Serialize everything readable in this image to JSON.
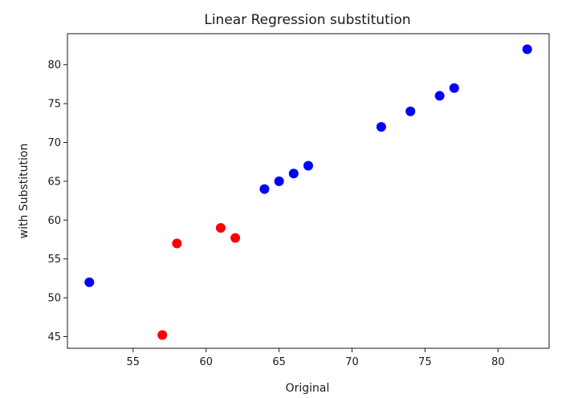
{
  "chart_data": {
    "type": "scatter",
    "title": "Linear Regression substitution",
    "xlabel": "Original",
    "ylabel": "with Substitution",
    "xlim": [
      50.5,
      83.5
    ],
    "ylim": [
      43.5,
      84
    ],
    "x_ticks": [
      55,
      60,
      65,
      70,
      75,
      80
    ],
    "y_ticks": [
      45,
      50,
      55,
      60,
      65,
      70,
      75,
      80
    ],
    "grid": false,
    "legend": "none",
    "series": [
      {
        "color": "#0000ff",
        "points": [
          {
            "x": 52,
            "y": 52
          },
          {
            "x": 64,
            "y": 64
          },
          {
            "x": 65,
            "y": 65
          },
          {
            "x": 66,
            "y": 66
          },
          {
            "x": 67,
            "y": 67
          },
          {
            "x": 72,
            "y": 72
          },
          {
            "x": 74,
            "y": 74
          },
          {
            "x": 76,
            "y": 76
          },
          {
            "x": 77,
            "y": 77
          },
          {
            "x": 82,
            "y": 82
          }
        ]
      },
      {
        "color": "#ff0000",
        "points": [
          {
            "x": 57,
            "y": 45.2
          },
          {
            "x": 58,
            "y": 57
          },
          {
            "x": 61,
            "y": 59
          },
          {
            "x": 62,
            "y": 57.7
          }
        ]
      }
    ]
  }
}
